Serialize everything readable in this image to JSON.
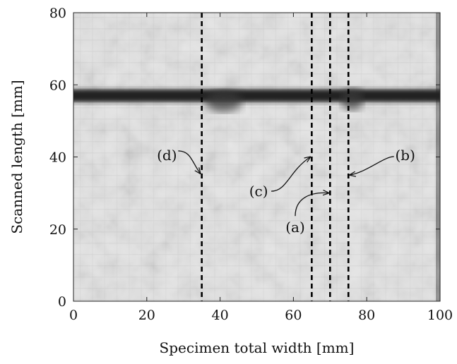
{
  "chart_data": {
    "type": "heatmap",
    "title": "",
    "xlabel": "Specimen total width [mm]",
    "ylabel": "Scanned length [mm]",
    "xlim": [
      0,
      100
    ],
    "ylim": [
      0,
      80
    ],
    "x_ticks": [
      0,
      20,
      40,
      60,
      80,
      100
    ],
    "y_ticks": [
      0,
      20,
      40,
      60,
      80
    ],
    "x_tick_labels": [
      "0",
      "20",
      "40",
      "60",
      "80",
      "100"
    ],
    "y_tick_labels": [
      "0",
      "20",
      "40",
      "60",
      "80"
    ],
    "grid": false,
    "colormap": "grayscale",
    "features": [
      {
        "kind": "dark-band",
        "y_center": 57,
        "y_halfwidth": 1.6,
        "x_range": [
          0,
          100
        ]
      },
      {
        "kind": "dark-spot",
        "x": 41,
        "y": 55.5,
        "rx": 5,
        "ry": 3
      },
      {
        "kind": "dark-spot",
        "x": 76,
        "y": 56,
        "rx": 3,
        "ry": 3
      }
    ],
    "vlines": [
      {
        "label": "(d)",
        "x": 35,
        "style": "dashed",
        "arrow_target": [
          35,
          35
        ],
        "label_pos": [
          25.5,
          40.5
        ]
      },
      {
        "label": "(c)",
        "x": 65,
        "style": "dashed",
        "arrow_target": [
          65,
          40
        ],
        "label_pos": [
          50.5,
          30.5
        ]
      },
      {
        "label": "(a)",
        "x": 70,
        "style": "dashed",
        "arrow_target": [
          70,
          30
        ],
        "label_pos": [
          60.5,
          20.5
        ]
      },
      {
        "label": "(b)",
        "x": 75,
        "style": "dashed",
        "arrow_target": [
          75,
          35
        ],
        "label_pos": [
          90.5,
          40.5
        ]
      }
    ]
  },
  "colors": {
    "dashed_line": "#000000",
    "band": "#202020",
    "background_light": "#e4e4e4",
    "axis": "#222222"
  }
}
